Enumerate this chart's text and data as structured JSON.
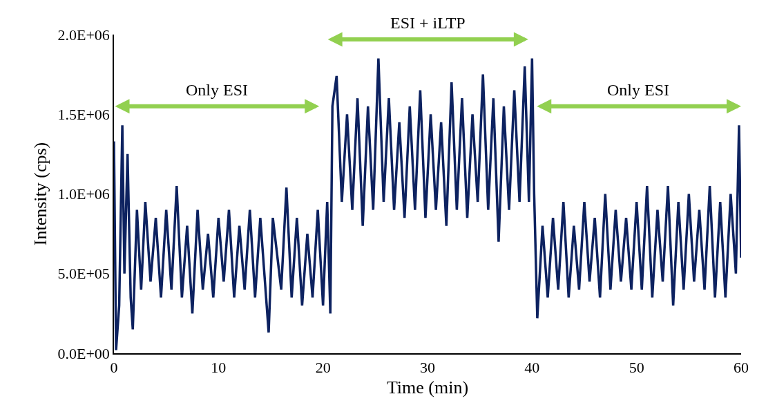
{
  "chart_data": {
    "type": "line",
    "xlabel": "Time (min)",
    "ylabel": "Intensity (cps)",
    "xlim": [
      0,
      60
    ],
    "xticks": [
      0,
      10,
      20,
      30,
      40,
      50,
      60
    ],
    "ylim": [
      0,
      2000000
    ],
    "yticks": [
      {
        "value": 0,
        "label": "0.0E+00"
      },
      {
        "value": 500000,
        "label": "5.0E+05"
      },
      {
        "value": 1000000,
        "label": "1.0E+06"
      },
      {
        "value": 1500000,
        "label": "1.5E+06"
      },
      {
        "value": 2000000,
        "label": "2.0E+06"
      }
    ],
    "marker": "none",
    "line_style": "solid",
    "annotations": [
      "Only ESI",
      "ESI + iLTP",
      "Only ESI"
    ],
    "series": [
      {
        "color": "#0d2260",
        "x": [
          0,
          0.2,
          0.5,
          0.8,
          1.0,
          1.3,
          1.6,
          1.8,
          2.2,
          2.6,
          3.0,
          3.5,
          4.0,
          4.5,
          5,
          5.5,
          6,
          6.5,
          7,
          7.5,
          8,
          8.5,
          9,
          9.5,
          10,
          10.5,
          11,
          11.5,
          12,
          12.5,
          13,
          13.5,
          14,
          14.5,
          14.8,
          15.2,
          16,
          16.5,
          17,
          17.5,
          18,
          18.5,
          19,
          19.5,
          20,
          20.4,
          20.7,
          20.9,
          21.3,
          21.8,
          22.3,
          22.8,
          23.3,
          23.8,
          24.3,
          24.8,
          25.3,
          25.8,
          26.3,
          26.8,
          27.3,
          27.8,
          28.3,
          28.8,
          29.3,
          29.8,
          30.3,
          30.8,
          31.3,
          31.8,
          32.3,
          32.8,
          33.3,
          33.8,
          34.3,
          34.8,
          35.3,
          35.8,
          36.3,
          36.8,
          37.3,
          37.8,
          38.3,
          38.8,
          39.3,
          39.7,
          40.0,
          40.2,
          40.5,
          41,
          41.5,
          42,
          42.5,
          43,
          43.5,
          44,
          44.5,
          45,
          45.5,
          46,
          46.5,
          47,
          47.5,
          48,
          48.5,
          49,
          49.5,
          50,
          50.5,
          51,
          51.5,
          52,
          52.5,
          53,
          53.5,
          54,
          54.5,
          55,
          55.5,
          56,
          56.5,
          57,
          57.5,
          58,
          58.5,
          59,
          59.5,
          59.8,
          60
        ],
        "values": [
          1330000,
          20000,
          300000,
          1430000,
          500000,
          1250000,
          350000,
          150000,
          900000,
          400000,
          950000,
          450000,
          850000,
          350000,
          900000,
          400000,
          1050000,
          350000,
          800000,
          250000,
          900000,
          400000,
          750000,
          350000,
          850000,
          450000,
          900000,
          350000,
          800000,
          400000,
          900000,
          350000,
          850000,
          400000,
          130000,
          850000,
          400000,
          1040000,
          350000,
          850000,
          300000,
          750000,
          350000,
          900000,
          300000,
          950000,
          250000,
          1550000,
          1740000,
          950000,
          1500000,
          900000,
          1600000,
          800000,
          1550000,
          900000,
          1850000,
          950000,
          1600000,
          900000,
          1450000,
          850000,
          1550000,
          900000,
          1650000,
          850000,
          1500000,
          900000,
          1450000,
          800000,
          1700000,
          900000,
          1600000,
          850000,
          1500000,
          950000,
          1750000,
          900000,
          1600000,
          700000,
          1550000,
          900000,
          1650000,
          950000,
          1800000,
          950000,
          1850000,
          1000000,
          220000,
          800000,
          350000,
          850000,
          400000,
          950000,
          350000,
          800000,
          400000,
          950000,
          450000,
          850000,
          350000,
          1000000,
          400000,
          900000,
          450000,
          850000,
          400000,
          950000,
          400000,
          1050000,
          350000,
          900000,
          450000,
          1050000,
          300000,
          950000,
          400000,
          1000000,
          450000,
          900000,
          400000,
          1050000,
          350000,
          950000,
          350000,
          1000000,
          500000,
          1430000,
          600000
        ]
      }
    ]
  }
}
